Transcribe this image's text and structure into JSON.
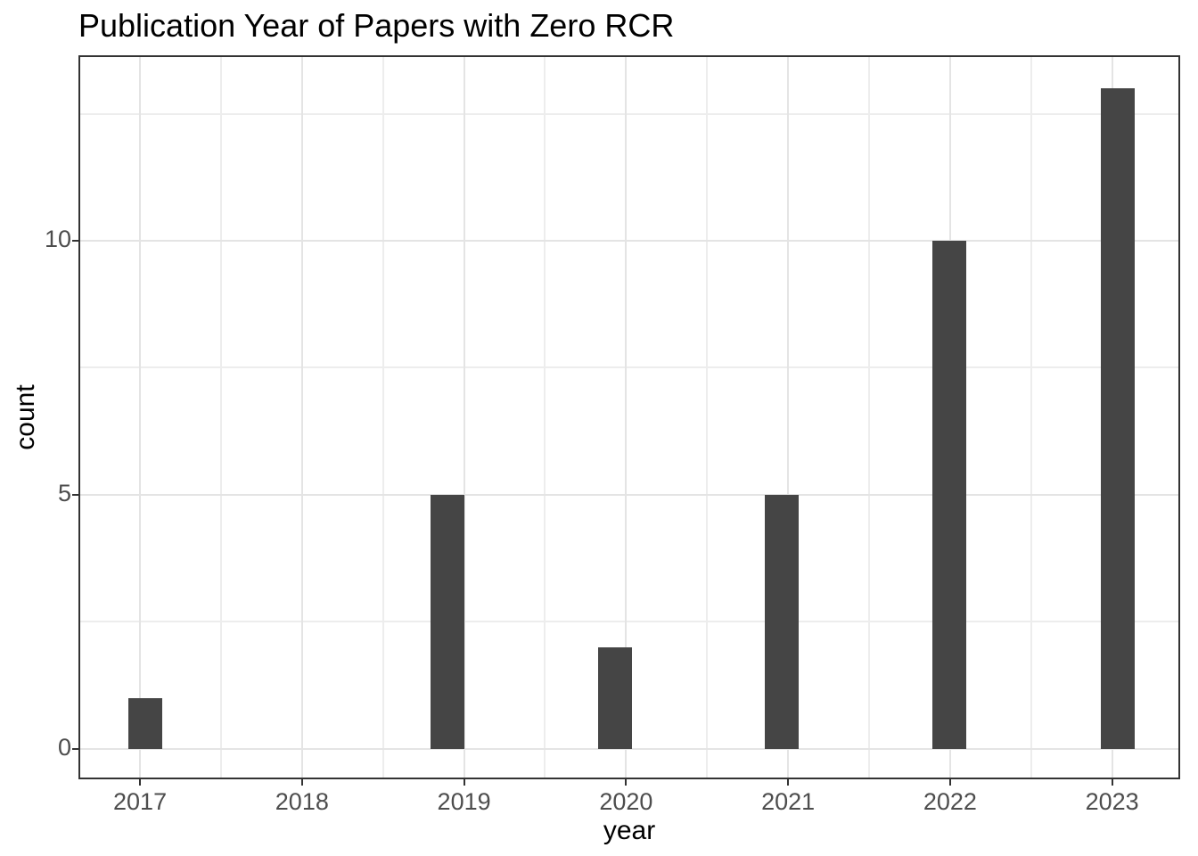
{
  "chart_data": {
    "type": "bar",
    "title": "Publication Year of Papers with Zero RCR",
    "xlabel": "year",
    "ylabel": "count",
    "categories": [
      2017,
      2018,
      2019,
      2020,
      2021,
      2022,
      2023
    ],
    "values": [
      1,
      0,
      5,
      2,
      5,
      10,
      13
    ],
    "bars": [
      {
        "year": 2017,
        "count": 1,
        "x_center": 2017.034
      },
      {
        "year": 2019,
        "count": 5,
        "x_center": 2018.896
      },
      {
        "year": 2020,
        "count": 2,
        "x_center": 2019.93
      },
      {
        "year": 2021,
        "count": 5,
        "x_center": 2020.963
      },
      {
        "year": 2022,
        "count": 10,
        "x_center": 2021.997
      },
      {
        "year": 2023,
        "count": 13,
        "x_center": 2023.037
      }
    ],
    "bar_width_x_units": 0.209,
    "xlim": [
      2016.62,
      2023.42
    ],
    "ylim": [
      -0.6,
      13.65
    ],
    "x_major_ticks": [
      2017,
      2018,
      2019,
      2020,
      2021,
      2022,
      2023
    ],
    "x_minor_gridlines": [
      2017.5,
      2018.5,
      2019.5,
      2020.5,
      2021.5,
      2022.5
    ],
    "y_major_ticks": [
      0,
      5,
      10
    ],
    "y_minor_gridlines": [
      2.5,
      7.5,
      12.5
    ],
    "grid": true,
    "legend": "none",
    "colors": {
      "bar_fill": "#454545",
      "grid_major": "#e4e4e4",
      "grid_minor": "#ededed",
      "panel_border": "#333333",
      "tick_mark": "#333333",
      "tick_label": "#4d4d4d",
      "title": "#000000",
      "axis_title": "#000000",
      "background": "#ffffff"
    }
  }
}
